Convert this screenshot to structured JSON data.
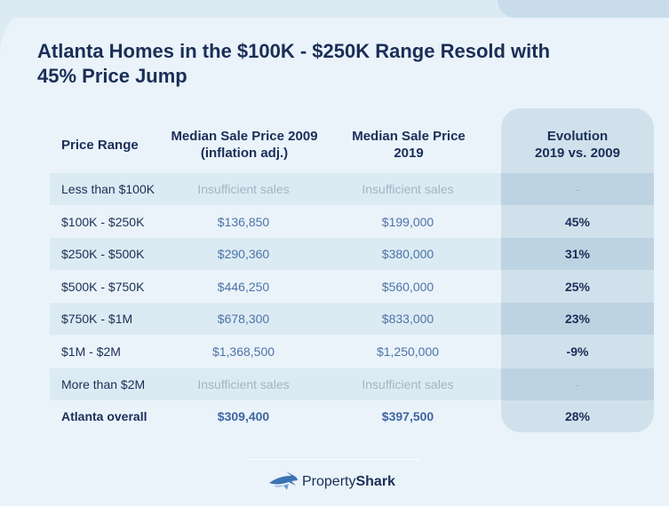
{
  "chart_data": {
    "type": "table",
    "title": "Atlanta Homes in the $100K - $250K Range Resold with 45% Price Jump",
    "columns": [
      "Price Range",
      "Median Sale Price 2009 (inflation adj.)",
      "Median Sale Price 2019",
      "Evolution 2019 vs. 2009"
    ],
    "column_headers": {
      "range": "Price Range",
      "p2009_line1": "Median Sale Price 2009",
      "p2009_line2": "(inflation adj.)",
      "p2019_line1": "Median Sale Price",
      "p2019_line2": "2019",
      "evo_line1": "Evolution",
      "evo_line2": "2019 vs. 2009"
    },
    "rows": [
      {
        "range": "Less than $100K",
        "p2009": "Insufficient sales",
        "p2019": "Insufficient sales",
        "evolution": "-"
      },
      {
        "range": "$100K - $250K",
        "p2009": "$136,850",
        "p2019": "$199,000",
        "evolution": "45%"
      },
      {
        "range": "$250K - $500K",
        "p2009": "$290,360",
        "p2019": "$380,000",
        "evolution": "31%"
      },
      {
        "range": "$500K - $750K",
        "p2009": "$446,250",
        "p2019": "$560,000",
        "evolution": "25%"
      },
      {
        "range": "$750K - $1M",
        "p2009": "$678,300",
        "p2019": "$833,000",
        "evolution": "23%"
      },
      {
        "range": "$1M - $2M",
        "p2009": "$1,368,500",
        "p2019": "$1,250,000",
        "evolution": "-9%"
      },
      {
        "range": "More than $2M",
        "p2009": "Insufficient sales",
        "p2019": "Insufficient sales",
        "evolution": "-"
      },
      {
        "range": "Atlanta overall",
        "p2009": "$309,400",
        "p2019": "$397,500",
        "evolution": "28%"
      }
    ]
  },
  "brand": {
    "name_regular": "Property",
    "name_bold": "Shark",
    "icon": "shark-logo-icon"
  },
  "colors": {
    "title": "#1a2e57",
    "value": "#4d73a7",
    "muted": "#a5b4c4",
    "band": "#dcebf3",
    "evolution_column": "#d1e1ec"
  }
}
